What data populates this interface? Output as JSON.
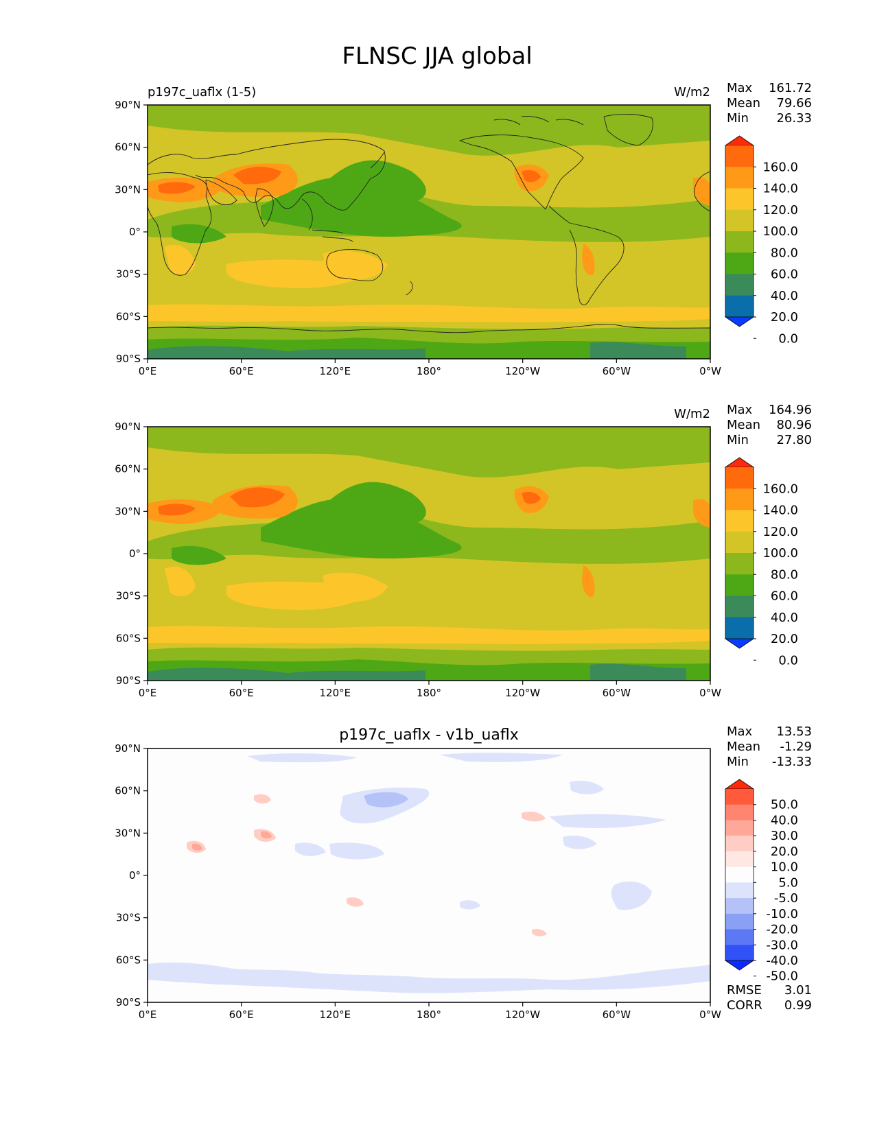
{
  "figure": {
    "title": "FLNSC JJA global"
  },
  "axes_labels": {
    "lat_ticks": [
      "90°N",
      "60°N",
      "30°N",
      "0°",
      "30°S",
      "60°S",
      "90°S"
    ],
    "lon_ticks": [
      "0°E",
      "60°E",
      "120°E",
      "180°",
      "120°W",
      "60°W",
      "0°W"
    ]
  },
  "panels": [
    {
      "id": "test",
      "title_left": "p197c_uaflx (1-5)",
      "title_center": "",
      "units": "W/m2",
      "stats": [
        {
          "label": "Max",
          "value": "161.72"
        },
        {
          "label": "Mean",
          "value": "79.66"
        },
        {
          "label": "Min",
          "value": "26.33"
        }
      ],
      "colorbar_labels": [
        "160.0",
        "140.0",
        "120.0",
        "100.0",
        "80.0",
        "60.0",
        "40.0",
        "20.0",
        "0.0"
      ],
      "colorbar_colors": [
        "#ff2a0a",
        "#ff6a0d",
        "#ff9a18",
        "#fcc62a",
        "#d3c527",
        "#8db81d",
        "#4ea815",
        "#3a8a5a",
        "#0a6eaa",
        "#0a3cff"
      ],
      "footer": []
    },
    {
      "id": "reference",
      "title_left": "",
      "title_center": "",
      "units": "W/m2",
      "stats": [
        {
          "label": "Max",
          "value": "164.96"
        },
        {
          "label": "Mean",
          "value": "80.96"
        },
        {
          "label": "Min",
          "value": "27.80"
        }
      ],
      "colorbar_labels": [
        "160.0",
        "140.0",
        "120.0",
        "100.0",
        "80.0",
        "60.0",
        "40.0",
        "20.0",
        "0.0"
      ],
      "colorbar_colors": [
        "#ff2a0a",
        "#ff6a0d",
        "#ff9a18",
        "#fcc62a",
        "#d3c527",
        "#8db81d",
        "#4ea815",
        "#3a8a5a",
        "#0a6eaa",
        "#0a3cff"
      ],
      "footer": []
    },
    {
      "id": "difference",
      "title_left": "",
      "title_center": "p197c_uaflx - v1b_uaflx",
      "units": "",
      "stats": [
        {
          "label": "Max",
          "value": "13.53"
        },
        {
          "label": "Mean",
          "value": "-1.29"
        },
        {
          "label": "Min",
          "value": "-13.33"
        }
      ],
      "colorbar_labels": [
        "50.0",
        "40.0",
        "30.0",
        "20.0",
        "10.0",
        "5.0",
        "-5.0",
        "-10.0",
        "-20.0",
        "-30.0",
        "-40.0",
        "-50.0"
      ],
      "colorbar_colors": [
        "#ff2a0a",
        "#ff5a3c",
        "#ff8570",
        "#ffa89a",
        "#ffcdc4",
        "#ffe8e4",
        "#fdfdfd",
        "#dde3fb",
        "#b5c2f7",
        "#8aa0f5",
        "#5c78f5",
        "#3052f7",
        "#0a2aff"
      ],
      "footer": [
        {
          "label": "RMSE",
          "value": "3.01"
        },
        {
          "label": "CORR",
          "value": "0.99"
        }
      ]
    }
  ]
}
